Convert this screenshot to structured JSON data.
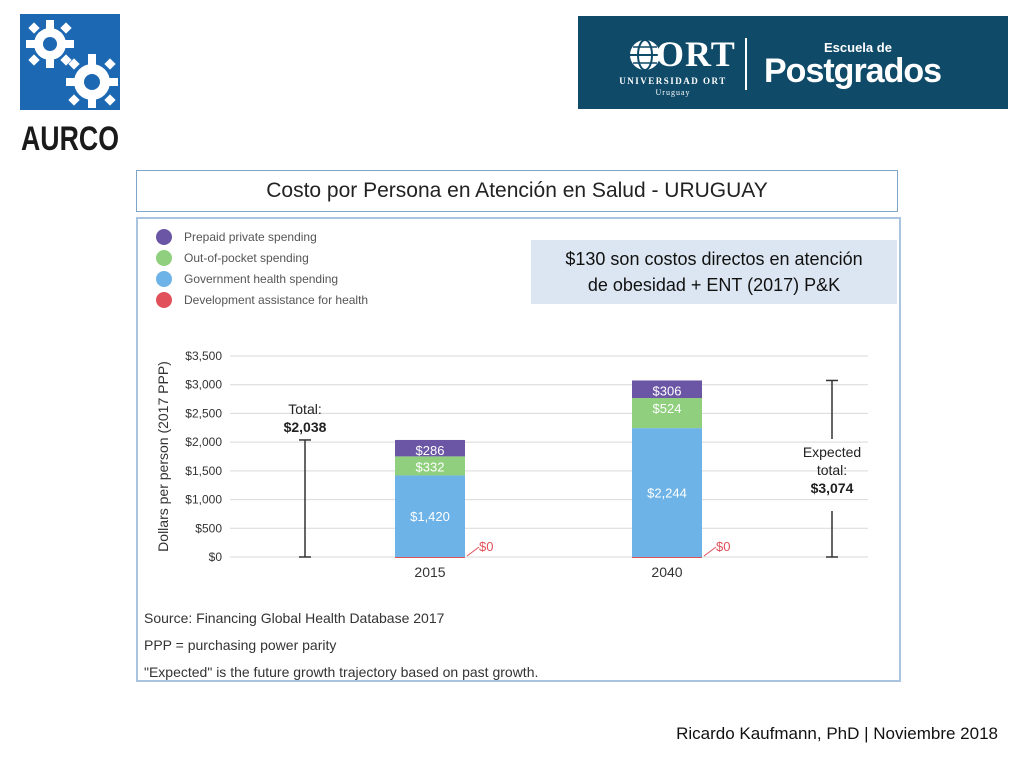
{
  "header": {
    "left_logo_text": "AURCO",
    "right_logo": {
      "word": "ORT",
      "line1": "UNIVERSIDAD ORT",
      "line2": "Uruguay",
      "school_line1": "Escuela de",
      "school_line2": "Postgrados"
    }
  },
  "slide": {
    "title": "Costo por Persona en Atención en Salud - URUGUAY",
    "callout_line1": "$130 son costos directos en atención",
    "callout_line2": "de obesidad + ENT  (2017) P&K",
    "footer": "Ricardo Kaufmann, PhD   |   Noviembre 2018"
  },
  "chart_data": {
    "type": "bar",
    "stacked": true,
    "categories": [
      "2015",
      "2040"
    ],
    "series": [
      {
        "name": "Development assistance for health",
        "color": "#e0515a",
        "values": [
          0,
          0
        ],
        "labels": [
          "$0",
          "$0"
        ]
      },
      {
        "name": "Government health spending",
        "color": "#6db3e8",
        "values": [
          1420,
          2244
        ],
        "labels": [
          "$1,420",
          "$2,244"
        ]
      },
      {
        "name": "Out-of-pocket spending",
        "color": "#8fcf7d",
        "values": [
          332,
          524
        ],
        "labels": [
          "$332",
          "$524"
        ]
      },
      {
        "name": "Prepaid private spending",
        "color": "#6b56a6",
        "values": [
          286,
          306
        ],
        "labels": [
          "$286",
          "$306"
        ]
      }
    ],
    "legend_order": [
      "Prepaid private spending",
      "Out-of-pocket spending",
      "Government health spending",
      "Development assistance for health"
    ],
    "ylabel": "Dollars per person (2017 PPP)",
    "ylim": [
      0,
      3500
    ],
    "yticks": [
      0,
      500,
      1000,
      1500,
      2000,
      2500,
      3000,
      3500
    ],
    "ytick_labels": [
      "$0",
      "$500",
      "$1,000",
      "$1,500",
      "$2,000",
      "$2,500",
      "$3,000",
      "$3,500"
    ],
    "grid": true,
    "legend_position": "top-left",
    "annotations": [
      {
        "lines": [
          "Total:",
          "$2,038"
        ],
        "value": 2038,
        "side": "left"
      },
      {
        "lines": [
          "Expected",
          "total:",
          "$3,074"
        ],
        "value": 3074,
        "side": "right"
      }
    ],
    "notes": [
      "Source: Financing Global Health Database 2017",
      "PPP = purchasing power parity",
      "\"Expected\" is the future growth trajectory based on past growth."
    ]
  }
}
